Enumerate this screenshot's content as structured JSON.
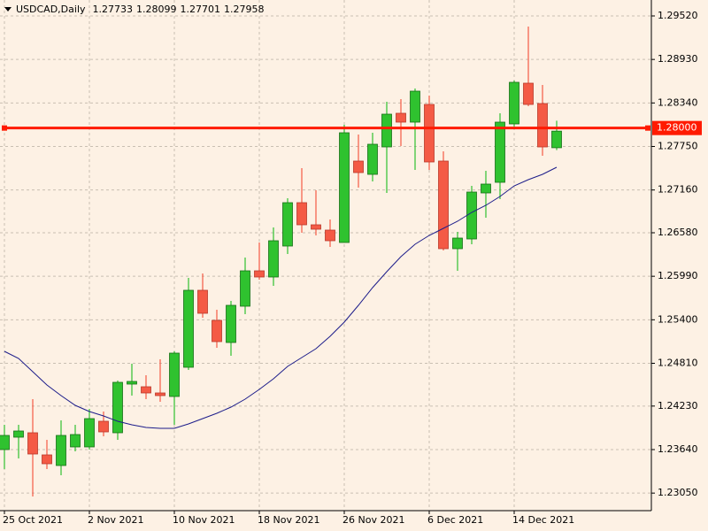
{
  "chart_data": {
    "type": "candlestick",
    "title": "USDCAD,Daily",
    "categories": [
      "25 Oct 2021",
      null,
      null,
      null,
      null,
      null,
      "2 Nov 2021",
      null,
      null,
      null,
      null,
      null,
      "10 Nov 2021",
      null,
      null,
      null,
      null,
      null,
      "18 Nov 2021",
      null,
      null,
      null,
      null,
      null,
      "26 Nov 2021",
      null,
      null,
      null,
      null,
      null,
      "6 Dec 2021",
      null,
      null,
      null,
      null,
      null,
      "14 Dec 2021",
      null,
      null,
      null
    ],
    "open": [
      1.2364,
      1.23808,
      1.23868,
      1.23568,
      1.23424,
      1.23676,
      1.23676,
      1.24024,
      1.23868,
      1.24528,
      1.24492,
      1.24408,
      1.2436,
      1.24756,
      1.258,
      1.25392,
      1.25092,
      1.25584,
      1.26064,
      1.2598,
      1.264,
      1.26988,
      1.26688,
      1.26616,
      1.26448,
      1.27552,
      1.27372,
      1.27744,
      1.282,
      1.2808,
      1.2832,
      1.27552,
      1.26364,
      1.26496,
      1.2712,
      1.27264,
      1.28056,
      1.28608,
      1.28332,
      1.27733
    ],
    "high": [
      1.23976,
      1.23976,
      1.24324,
      1.23772,
      1.24036,
      1.23976,
      1.24192,
      1.24156,
      1.24576,
      1.24804,
      1.24648,
      1.24864,
      1.24972,
      1.25968,
      1.26028,
      1.25536,
      1.25656,
      1.26244,
      1.26448,
      1.26652,
      1.27048,
      1.27456,
      1.27156,
      1.2676,
      1.28044,
      1.27912,
      1.27936,
      1.28356,
      1.28392,
      1.28536,
      1.2844,
      1.27684,
      1.26592,
      1.27216,
      1.2742,
      1.282,
      1.28644,
      1.29376,
      1.28584,
      1.28099
    ],
    "low": [
      1.23376,
      1.2352,
      1.23004,
      1.23376,
      1.23292,
      1.23616,
      1.2364,
      1.2382,
      1.23772,
      1.24372,
      1.24324,
      1.24288,
      1.23976,
      1.2472,
      1.25428,
      1.2502,
      1.24912,
      1.25476,
      1.25944,
      1.2586,
      1.26292,
      1.2658,
      1.26544,
      1.26388,
      1.26448,
      1.27192,
      1.27276,
      1.2712,
      1.27756,
      1.27432,
      1.27432,
      1.2634,
      1.26064,
      1.26424,
      1.26784,
      1.27036,
      1.2802,
      1.28296,
      1.27624,
      1.27701
    ],
    "close": [
      1.23832,
      1.23892,
      1.2358,
      1.23448,
      1.23832,
      1.23844,
      1.2406,
      1.2388,
      1.24552,
      1.24564,
      1.24408,
      1.24372,
      1.24948,
      1.258,
      1.25488,
      1.25104,
      1.25596,
      1.26064,
      1.2598,
      1.26472,
      1.26988,
      1.26688,
      1.26628,
      1.26472,
      1.27936,
      1.27396,
      1.2778,
      1.28188,
      1.2808,
      1.285,
      1.2754,
      1.26364,
      1.26508,
      1.27132,
      1.2724,
      1.2808,
      1.2862,
      1.2832,
      1.27744,
      1.27958
    ],
    "up_color": "#2fc22f",
    "down_color": "#f45a45",
    "ma": {
      "color": "#1c1c8a",
      "values": [
        1.24972,
        1.24876,
        1.24696,
        1.24516,
        1.24372,
        1.2424,
        1.24156,
        1.24096,
        1.24024,
        1.23976,
        1.2394,
        1.23928,
        1.23928,
        1.23988,
        1.2406,
        1.24132,
        1.24216,
        1.24324,
        1.24456,
        1.246,
        1.24768,
        1.24888,
        1.25008,
        1.25176,
        1.25368,
        1.25596,
        1.25836,
        1.26052,
        1.26256,
        1.26424,
        1.26544,
        1.2664,
        1.26736,
        1.26856,
        1.26952,
        1.27072,
        1.27216,
        1.273,
        1.27372,
        1.27468
      ]
    },
    "hline": {
      "value": 1.28,
      "label": "1.28000",
      "color": "#ff1a00"
    },
    "ylim": [
      1.22824,
      1.29736
    ],
    "yticks": [
      {
        "value": 1.2952,
        "label": "1.29520"
      },
      {
        "value": 1.2893,
        "label": "1.28930"
      },
      {
        "value": 1.2834,
        "label": "1.28340"
      },
      {
        "value": 1.2775,
        "label": "1.27750"
      },
      {
        "value": 1.2716,
        "label": "1.27160"
      },
      {
        "value": 1.2658,
        "label": "1.26580"
      },
      {
        "value": 1.2599,
        "label": "1.25990"
      },
      {
        "value": 1.254,
        "label": "1.25400"
      },
      {
        "value": 1.2481,
        "label": "1.24810"
      },
      {
        "value": 1.2423,
        "label": "1.24230"
      },
      {
        "value": 1.2364,
        "label": "1.23640"
      },
      {
        "value": 1.2305,
        "label": "1.23050"
      }
    ],
    "grid": true
  }
}
